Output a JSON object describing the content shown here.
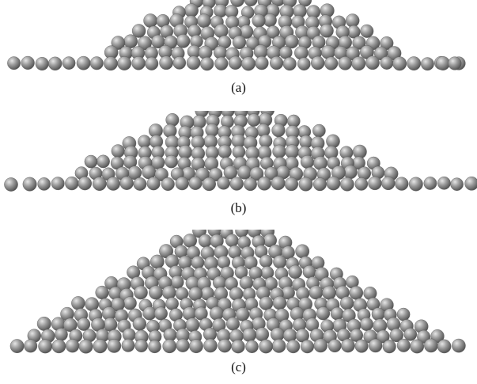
{
  "figure": {
    "panels": [
      {
        "label": "(a)",
        "shape": "low-pile"
      },
      {
        "label": "(b)",
        "shape": "medium-pile"
      },
      {
        "label": "(c)",
        "shape": "tall-pile"
      }
    ],
    "particle_color": "#9a9a9a",
    "particle_highlight": "#e6e6e6",
    "particle_shadow": "#4a4a4a",
    "background_color": "#ffffff"
  }
}
